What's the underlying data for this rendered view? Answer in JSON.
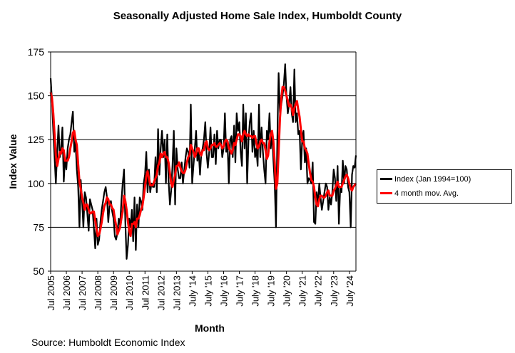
{
  "chart_data": {
    "type": "line",
    "title": "Seasonally Adjusted Home Sale Index, Humboldt County",
    "xlabel": "Month",
    "ylabel": "Index Value",
    "ylim": [
      50,
      175
    ],
    "yticks": [
      50,
      75,
      100,
      125,
      150,
      175
    ],
    "grid": "horizontal",
    "legend_position": "right",
    "x_tick_labels": [
      "Jul 2005",
      "Jul 2006",
      "Jul 2007",
      "Jul 2008",
      "Jul 2009",
      "Jul 2010",
      "Jul 2011",
      "Jul 2012",
      "Jul 2013",
      "July '14",
      "July '15",
      "July '16",
      "July '17",
      "July '18",
      "July '19",
      "July '20",
      "July '21",
      "July '22",
      "July '23",
      "July '24"
    ],
    "x_start": "2005-07",
    "series": [
      {
        "name": "Index (Jan 1994=100)",
        "color": "#000000",
        "values": [
          160,
          148,
          130,
          115,
          100,
          118,
          133,
          115,
          120,
          132,
          101,
          115,
          108,
          120,
          125,
          128,
          135,
          141,
          118,
          124,
          108,
          98,
          75,
          102,
          90,
          75,
          95,
          92,
          83,
          73,
          91,
          88,
          85,
          75,
          63,
          80,
          65,
          68,
          78,
          85,
          90,
          95,
          98,
          92,
          78,
          88,
          90,
          84,
          80,
          70,
          68,
          72,
          80,
          76,
          90,
          100,
          108,
          78,
          57,
          65,
          80,
          75,
          85,
          67,
          92,
          62,
          88,
          75,
          92,
          90,
          85,
          100,
          105,
          118,
          95,
          108,
          95,
          100,
          98,
          98,
          115,
          95,
          131,
          105,
          120,
          130,
          115,
          125,
          100,
          128,
          102,
          88,
          96,
          110,
          130,
          88,
          120,
          108,
          103,
          103,
          112,
          100,
          108,
          115,
          120,
          118,
          109,
          145,
          100,
          110,
          120,
          130,
          113,
          118,
          105,
          117,
          120,
          125,
          135,
          117,
          109,
          118,
          132,
          115,
          115,
          128,
          111,
          130,
          120,
          125,
          125,
          115,
          120,
          140,
          118,
          123,
          100,
          125,
          127,
          115,
          133,
          112,
          140,
          130,
          135,
          118,
          110,
          145,
          120,
          140,
          100,
          125,
          135,
          140,
          118,
          130,
          115,
          120,
          110,
          145,
          115,
          132,
          118,
          108,
          100,
          130,
          125,
          140,
          120,
          130,
          113,
          100,
          75,
          125,
          163,
          140,
          145,
          150,
          157,
          168,
          150,
          140,
          145,
          155,
          140,
          135,
          165,
          135,
          140,
          128,
          130,
          108,
          125,
          130,
          112,
          120,
          100,
          103,
          102,
          100,
          112,
          78,
          77,
          95,
          88,
          100,
          92,
          85,
          90,
          95,
          100,
          98,
          85,
          92,
          88,
          95,
          108,
          103,
          90,
          110,
          77,
          98,
          95,
          113,
          100,
          110,
          108,
          98,
          95,
          75,
          105,
          110,
          109,
          116
        ]
      },
      {
        "name": "4 month mov. Avg.",
        "color": "#ff0000",
        "values": [
          152,
          149,
          140,
          128,
          116,
          110,
          114,
          118,
          117,
          120,
          119,
          113,
          113,
          113,
          115,
          120,
          124,
          129,
          130,
          125,
          122,
          111,
          101,
          97,
          92,
          89,
          85,
          88,
          88,
          85,
          83,
          83,
          84,
          84,
          79,
          74,
          70,
          71,
          74,
          78,
          83,
          87,
          89,
          92,
          91,
          88,
          88,
          86,
          85,
          80,
          76,
          71,
          73,
          75,
          80,
          84,
          93,
          90,
          85,
          78,
          73,
          70,
          77,
          77,
          78,
          75,
          80,
          80,
          82,
          85,
          87,
          92,
          98,
          104,
          107,
          103,
          99,
          99,
          99,
          101,
          103,
          105,
          110,
          112,
          117,
          115,
          117,
          118,
          115,
          115,
          112,
          106,
          100,
          98,
          102,
          105,
          110,
          110,
          112,
          109,
          107,
          106,
          106,
          108,
          112,
          115,
          116,
          122,
          120,
          118,
          115,
          117,
          120,
          120,
          117,
          116,
          119,
          119,
          123,
          124,
          120,
          119,
          120,
          122,
          122,
          123,
          121,
          121,
          122,
          123,
          122,
          120,
          121,
          124,
          125,
          124,
          120,
          119,
          117,
          119,
          123,
          122,
          125,
          128,
          128,
          127,
          124,
          128,
          130,
          128,
          127,
          128,
          127,
          127,
          126,
          127,
          127,
          123,
          120,
          121,
          124,
          125,
          123,
          123,
          119,
          114,
          116,
          124,
          128,
          130,
          124,
          112,
          97,
          100,
          118,
          137,
          148,
          155,
          155,
          153,
          150,
          147,
          144,
          145,
          143,
          139,
          143,
          145,
          147,
          142,
          138,
          131,
          124,
          124,
          120,
          119,
          117,
          111,
          106,
          102,
          101,
          98,
          92,
          88,
          87,
          91,
          93,
          93,
          92,
          92,
          93,
          95,
          96,
          93,
          93,
          93,
          96,
          97,
          99,
          101,
          98,
          98,
          98,
          100,
          102,
          104,
          105,
          103,
          100,
          97,
          96,
          98,
          99,
          100
        ]
      }
    ]
  },
  "source_text": "Source: Humboldt Economic Index"
}
